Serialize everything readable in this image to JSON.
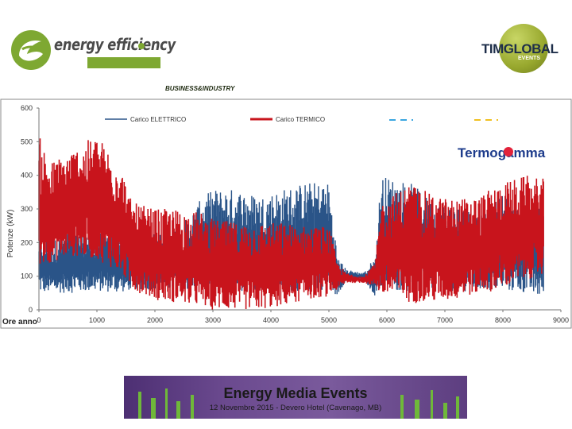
{
  "logos": {
    "left_title": "energy efficiency",
    "left_sub": "BUSINESS&INDUSTRY",
    "right_title": "TIMGLOBAL",
    "right_sub": "EVENTS",
    "chart_brand": "Termogamma",
    "colors": {
      "green": "#7ea832",
      "olive": "#98a82e",
      "navy": "#1e2e4a",
      "brand_red": "#e2223a"
    }
  },
  "banner": {
    "title": "Energy Media Events",
    "subtitle": "12 Novembre 2015 - Devero Hotel (Cavenago, MB)"
  },
  "chart_data": {
    "type": "line",
    "title": "",
    "xlabel": "Ore anno",
    "ylabel": "Potenze (kW)",
    "xlim": [
      0,
      9000
    ],
    "ylim": [
      0,
      600
    ],
    "x_ticks": [
      0,
      1000,
      2000,
      3000,
      4000,
      5000,
      6000,
      7000,
      8000,
      9000
    ],
    "y_ticks": [
      0,
      100,
      200,
      300,
      400,
      500,
      600
    ],
    "grid": false,
    "legend_position": "top",
    "series": [
      {
        "name": "Carico ELETTRICO",
        "color": "#2a5488",
        "envelope": {
          "x": [
            0,
            200,
            600,
            1000,
            1400,
            1600,
            2000,
            2400,
            2800,
            3000,
            3400,
            3800,
            4200,
            4600,
            5000,
            5150,
            5300,
            5600,
            5800,
            5900,
            6400,
            6800,
            7200,
            7600,
            8000,
            8400,
            8700
          ],
          "low": [
            50,
            50,
            50,
            55,
            50,
            60,
            60,
            55,
            60,
            60,
            55,
            60,
            55,
            55,
            60,
            40,
            90,
            90,
            40,
            55,
            55,
            55,
            55,
            55,
            55,
            50,
            30
          ],
          "high": [
            230,
            200,
            250,
            230,
            240,
            200,
            230,
            240,
            330,
            360,
            360,
            340,
            360,
            380,
            380,
            160,
            120,
            110,
            160,
            400,
            380,
            320,
            310,
            290,
            340,
            300,
            320
          ]
        }
      },
      {
        "name": "Carico TERMICO",
        "color": "#c8141c",
        "envelope": {
          "x": [
            0,
            200,
            600,
            1000,
            1400,
            1600,
            2000,
            2400,
            2800,
            3000,
            3400,
            3800,
            4200,
            4600,
            5000,
            5150,
            5300,
            5600,
            5800,
            5900,
            6400,
            6800,
            7200,
            7600,
            8000,
            8400,
            8700
          ],
          "low": [
            130,
            140,
            160,
            150,
            110,
            60,
            30,
            20,
            10,
            0,
            0,
            0,
            10,
            30,
            40,
            60,
            80,
            80,
            70,
            40,
            20,
            20,
            30,
            50,
            60,
            90,
            100
          ],
          "high": [
            520,
            440,
            480,
            520,
            440,
            320,
            300,
            300,
            290,
            270,
            260,
            260,
            260,
            250,
            250,
            140,
            110,
            100,
            140,
            320,
            380,
            340,
            330,
            340,
            380,
            400,
            390
          ]
        }
      }
    ]
  }
}
